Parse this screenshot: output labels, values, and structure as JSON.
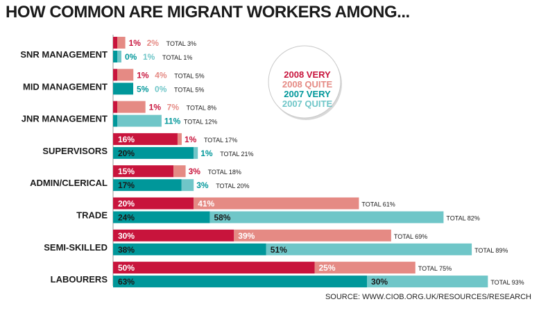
{
  "chart_data": {
    "type": "bar",
    "orientation": "horizontal",
    "stacked": true,
    "title": "HOW COMMON ARE MIGRANT WORKERS AMONG...",
    "source": "SOURCE: WWW.CIOB.ORG.UK/RESOURCES/RESEARCH",
    "categories": [
      "SNR MANAGEMENT",
      "MID MANAGEMENT",
      "JNR MANAGEMENT",
      "SUPERVISORS",
      "ADMIN/CLERICAL",
      "TRADE",
      "SEMI-SKILLED",
      "LABOURERS"
    ],
    "total_prefix": "TOTAL",
    "legend": [
      {
        "label": "2008 VERY",
        "color": "#c8143c"
      },
      {
        "label": "2008 QUITE",
        "color": "#e58a84"
      },
      {
        "label": "2007 VERY",
        "color": "#00979a"
      },
      {
        "label": "2007 QUITE",
        "color": "#6fc6c8"
      }
    ],
    "groups": [
      {
        "year": "2008",
        "very_color": "#c8143c",
        "quite_color": "#e58a84",
        "very": [
          1,
          1,
          1,
          16,
          15,
          20,
          30,
          50
        ],
        "quite": [
          2,
          4,
          7,
          1,
          3,
          41,
          39,
          25
        ],
        "total": [
          3,
          5,
          8,
          17,
          18,
          61,
          69,
          75
        ]
      },
      {
        "year": "2007",
        "very_color": "#00979a",
        "quite_color": "#6fc6c8",
        "very": [
          0,
          5,
          1,
          20,
          17,
          24,
          38,
          63
        ],
        "quite": [
          1,
          0,
          11,
          1,
          3,
          58,
          51,
          30
        ],
        "total": [
          1,
          5,
          12,
          21,
          20,
          82,
          89,
          93
        ]
      }
    ],
    "unit": "%"
  }
}
